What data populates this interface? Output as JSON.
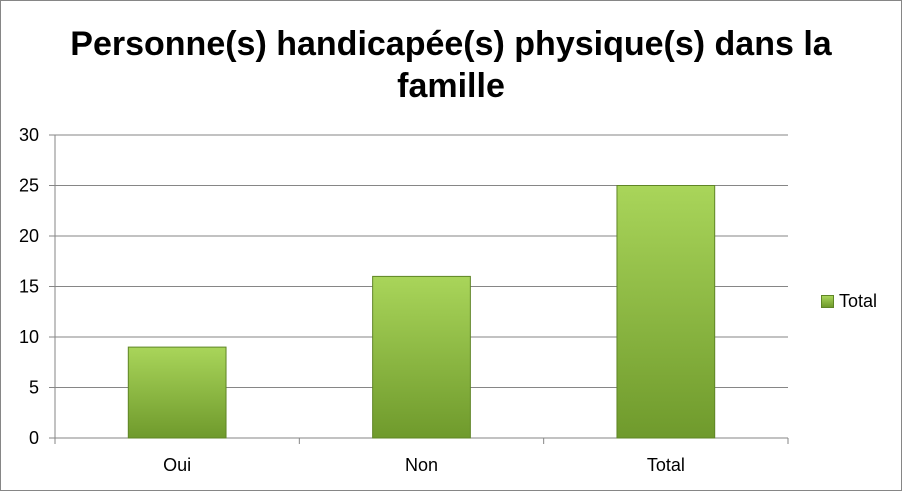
{
  "chart_data": {
    "type": "bar",
    "title": "Personne(s) handicapée(s) physique(s) dans la famille",
    "categories": [
      "Oui",
      "Non",
      "Total"
    ],
    "series": [
      {
        "name": "Total",
        "values": [
          9,
          16,
          25
        ]
      }
    ],
    "xlabel": "",
    "ylabel": "",
    "ylim": [
      0,
      30
    ],
    "yticks": [
      0,
      5,
      10,
      15,
      20,
      25,
      30
    ],
    "grid": true,
    "legend": "right",
    "colors": {
      "bar_top": "#a9d55a",
      "bar_bottom": "#6f9a2c",
      "bar_edge": "#5f8526",
      "grid": "#868686"
    }
  }
}
